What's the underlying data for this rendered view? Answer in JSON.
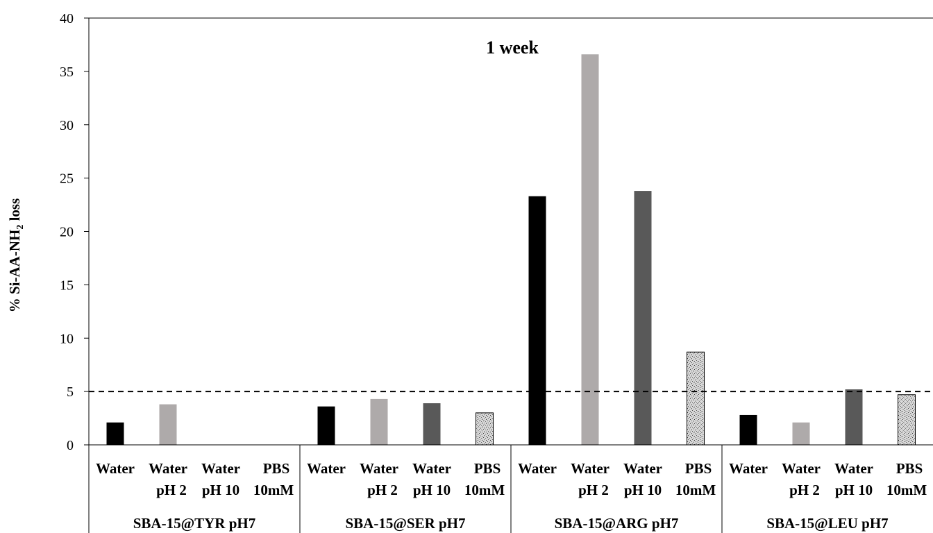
{
  "chart_data": {
    "type": "bar",
    "title": "1 week",
    "ylabel_prefix": "% Si-AA-NH",
    "ylabel_subscript": "2",
    "ylabel_suffix": " loss",
    "ylim": [
      0,
      40
    ],
    "yticks": [
      0,
      5,
      10,
      15,
      20,
      25,
      30,
      35,
      40
    ],
    "threshold": 5,
    "categories": [
      {
        "line1": "Water",
        "line2": ""
      },
      {
        "line1": "Water",
        "line2": "pH 2"
      },
      {
        "line1": "Water",
        "line2": "pH 10"
      },
      {
        "line1": "PBS",
        "line2": "10mM"
      }
    ],
    "groups": [
      {
        "name": "SBA-15@TYR pH7",
        "values": [
          2.1,
          3.8,
          null,
          null
        ]
      },
      {
        "name": "SBA-15@SER pH7",
        "values": [
          3.6,
          4.3,
          3.9,
          3.0
        ]
      },
      {
        "name": "SBA-15@ARG pH7",
        "values": [
          23.3,
          36.6,
          23.8,
          8.7
        ]
      },
      {
        "name": "SBA-15@LEU pH7",
        "values": [
          2.8,
          2.1,
          5.2,
          4.7
        ]
      }
    ],
    "colors": [
      "#000000",
      "#aeaaaa",
      "#595959",
      "#bfbfbf"
    ],
    "legend": "none",
    "grid": false
  }
}
